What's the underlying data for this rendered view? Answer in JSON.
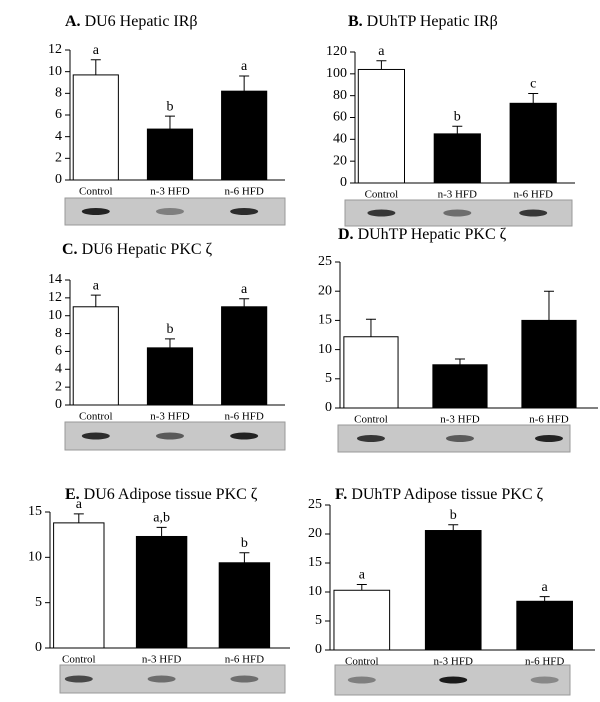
{
  "chart_data": [
    {
      "type": "bar",
      "label": "A.",
      "title": " DU6  Hepatic IRβ",
      "categories": [
        "Control",
        "n-3 HFD",
        "n-6 HFD"
      ],
      "values": [
        9.7,
        4.7,
        8.2
      ],
      "errors": [
        1.4,
        1.2,
        1.4
      ],
      "annotations": [
        "a",
        "b",
        "a"
      ],
      "colors": [
        "#ffffff",
        "#000000",
        "#000000"
      ],
      "ylim": [
        0,
        12
      ],
      "yticks": [
        0,
        2,
        4,
        6,
        8,
        10,
        12
      ]
    },
    {
      "type": "bar",
      "label": "B.",
      "title": " DUhTP  Hepatic IRβ",
      "categories": [
        "Control",
        "n-3 HFD",
        "n-6 HFD"
      ],
      "values": [
        104,
        45,
        73
      ],
      "errors": [
        8,
        7,
        9
      ],
      "annotations": [
        "a",
        "b",
        "c"
      ],
      "colors": [
        "#ffffff",
        "#000000",
        "#000000"
      ],
      "ylim": [
        0,
        120
      ],
      "yticks": [
        0,
        20,
        40,
        60,
        80,
        100,
        120
      ]
    },
    {
      "type": "bar",
      "label": "C.",
      "title": " DU6 Hepatic PKC ζ",
      "categories": [
        "Control",
        "n-3 HFD",
        "n-6 HFD"
      ],
      "values": [
        11,
        6.4,
        11
      ],
      "errors": [
        1.3,
        1.0,
        0.9
      ],
      "annotations": [
        "a",
        "b",
        "a"
      ],
      "colors": [
        "#ffffff",
        "#000000",
        "#000000"
      ],
      "ylim": [
        0,
        14
      ],
      "yticks": [
        0,
        2,
        4,
        6,
        8,
        10,
        12,
        14
      ]
    },
    {
      "type": "bar",
      "label": "D.",
      "title": " DUhTP  Hepatic PKC ζ",
      "categories": [
        "Control",
        "n-3 HFD",
        "n-6 HFD"
      ],
      "values": [
        12.2,
        7.4,
        15
      ],
      "errors": [
        3,
        1,
        5
      ],
      "colors": [
        "#ffffff",
        "#000000",
        "#000000"
      ],
      "ylim": [
        0,
        25
      ],
      "yticks": [
        0,
        5,
        10,
        15,
        20,
        25
      ]
    },
    {
      "type": "bar",
      "label": "E.",
      "title": " DU6 Adipose tissue PKC ζ",
      "categories": [
        "Control",
        "n-3 HFD",
        "n-6 HFD"
      ],
      "values": [
        13.8,
        12.3,
        9.4
      ],
      "errors": [
        1,
        1,
        1.1
      ],
      "annotations": [
        "a",
        "a,b",
        "b"
      ],
      "colors": [
        "#ffffff",
        "#000000",
        "#000000"
      ],
      "ylim": [
        0,
        15
      ],
      "yticks": [
        0,
        5,
        10,
        15
      ]
    },
    {
      "type": "bar",
      "label": "F.",
      "title": " DUhTP Adipose tissue PKC ζ",
      "categories": [
        "Control",
        "n-3 HFD",
        "n-6 HFD"
      ],
      "values": [
        10.3,
        20.6,
        8.4
      ],
      "errors": [
        1,
        1,
        0.8
      ],
      "annotations": [
        "a",
        "b",
        "a"
      ],
      "colors": [
        "#ffffff",
        "#000000",
        "#000000"
      ],
      "ylim": [
        0,
        25
      ],
      "yticks": [
        0,
        5,
        10,
        15,
        20,
        25
      ]
    }
  ]
}
